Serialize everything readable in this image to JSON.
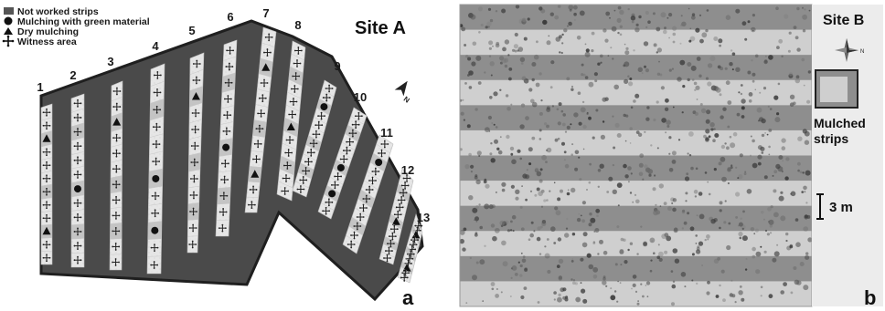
{
  "panel_a": {
    "site_label": "Site A",
    "panel_letter": "a",
    "legend": [
      {
        "icon": "grey-square-icon",
        "label": "Not worked strips"
      },
      {
        "icon": "filled-circle-icon",
        "label": "Mulching with green material"
      },
      {
        "icon": "filled-triangle-icon",
        "label": "Dry mulching"
      },
      {
        "icon": "four-point-cross-icon",
        "label": "Witness area"
      }
    ],
    "strip_numbers": [
      "1",
      "2",
      "3",
      "4",
      "5",
      "6",
      "7",
      "8",
      "9",
      "10",
      "11",
      "12",
      "13"
    ],
    "north_label": "N",
    "colors": {
      "not_worked": "#4a4a4a",
      "strip": "#e6e6e6",
      "mulched": "#bdbdbd",
      "outline": "#1f1f1f"
    }
  },
  "panel_b": {
    "site_label": "Site B",
    "panel_letter": "b",
    "mulched_label_line1": "Mulched",
    "mulched_label_line2": "strips",
    "scale_label": "3 m",
    "north_label": "N",
    "colors": {
      "dark_strip": "#8e8e8e",
      "light_strip": "#cfcfcf",
      "sidebar": "#eeeeee"
    }
  }
}
